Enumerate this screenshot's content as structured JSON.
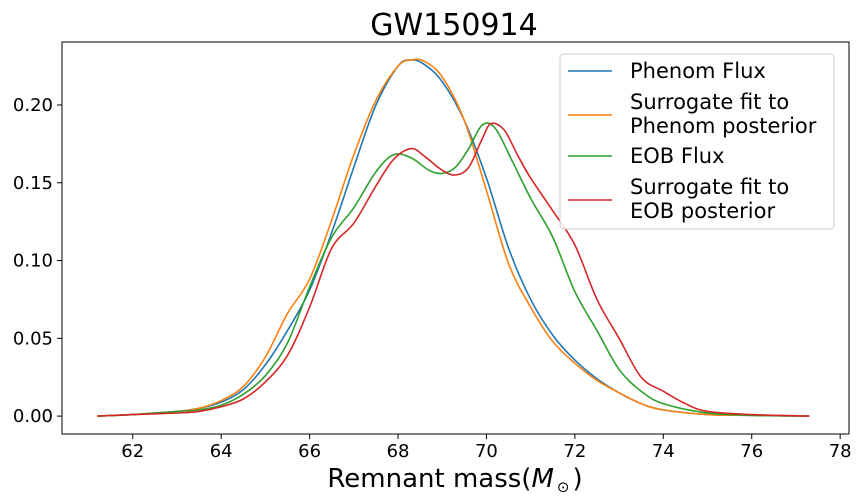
{
  "chart_data": {
    "type": "line",
    "title": "GW150914",
    "xlabel_main": "Remnant mass",
    "xlabel_paren_open": "(",
    "xlabel_M": "M",
    "xlabel_sub": "⊙",
    "xlabel_paren_close": ")",
    "ylabel": "",
    "xlim": [
      60.4,
      78.2
    ],
    "ylim": [
      -0.0115,
      0.2405
    ],
    "xticks": [
      62,
      64,
      66,
      68,
      70,
      72,
      74,
      76,
      78
    ],
    "xtick_labels": [
      "62",
      "64",
      "66",
      "68",
      "70",
      "72",
      "74",
      "76",
      "78"
    ],
    "yticks": [
      0.0,
      0.05,
      0.1,
      0.15,
      0.2
    ],
    "ytick_labels": [
      "0.00",
      "0.05",
      "0.10",
      "0.15",
      "0.20"
    ],
    "grid": false,
    "legend_position": "top-right",
    "legend": {
      "phenom_flux": "Phenom Flux",
      "surr_phenom_line1": "Surrogate fit to",
      "surr_phenom_line2": "Phenom posterior",
      "eob_flux": "EOB Flux",
      "surr_eob_line1": "Surrogate fit to",
      "surr_eob_line2": "EOB posterior"
    },
    "series": [
      {
        "name": "Phenom Flux",
        "color": "#1f77b4",
        "x": [
          61.2,
          62,
          63,
          63.5,
          64,
          64.5,
          65,
          65.5,
          66,
          66.5,
          67,
          67.5,
          68,
          68.3,
          68.6,
          69,
          69.5,
          70,
          70.5,
          71,
          71.5,
          72,
          72.5,
          73,
          73.5,
          74,
          75,
          76,
          77.3
        ],
        "y": [
          0.0,
          0.001,
          0.003,
          0.005,
          0.009,
          0.017,
          0.033,
          0.055,
          0.081,
          0.118,
          0.16,
          0.2,
          0.225,
          0.229,
          0.226,
          0.215,
          0.19,
          0.153,
          0.108,
          0.075,
          0.052,
          0.036,
          0.024,
          0.015,
          0.008,
          0.004,
          0.001,
          0.0005,
          0.0
        ]
      },
      {
        "name": "Surrogate fit to Phenom posterior",
        "color": "#ff7f0e",
        "x": [
          61.2,
          62,
          63,
          63.5,
          64,
          64.5,
          65,
          65.5,
          66,
          66.5,
          67,
          67.5,
          68,
          68.3,
          68.6,
          69,
          69.5,
          70,
          70.5,
          71,
          71.5,
          72,
          72.5,
          73,
          73.5,
          74,
          75,
          76,
          77.3
        ],
        "y": [
          0.0,
          0.001,
          0.003,
          0.005,
          0.01,
          0.019,
          0.038,
          0.066,
          0.088,
          0.126,
          0.168,
          0.203,
          0.225,
          0.229,
          0.228,
          0.218,
          0.19,
          0.145,
          0.098,
          0.07,
          0.048,
          0.034,
          0.023,
          0.015,
          0.008,
          0.004,
          0.001,
          0.0005,
          0.0
        ]
      },
      {
        "name": "EOB Flux",
        "color": "#2ca02c",
        "x": [
          61.2,
          62,
          63,
          63.5,
          64,
          64.5,
          65,
          65.5,
          66,
          66.5,
          67,
          67.5,
          67.9,
          68.3,
          68.7,
          69,
          69.3,
          69.6,
          69.9,
          70.2,
          70.6,
          71,
          71.5,
          72,
          72.5,
          73,
          73.5,
          74,
          75,
          76,
          77.3
        ],
        "y": [
          0.0,
          0.001,
          0.003,
          0.004,
          0.007,
          0.014,
          0.026,
          0.047,
          0.083,
          0.115,
          0.134,
          0.157,
          0.168,
          0.166,
          0.158,
          0.156,
          0.16,
          0.172,
          0.187,
          0.185,
          0.163,
          0.14,
          0.115,
          0.08,
          0.055,
          0.03,
          0.016,
          0.008,
          0.002,
          0.0005,
          0.0
        ]
      },
      {
        "name": "Surrogate fit to EOB posterior",
        "color": "#d62728",
        "x": [
          61.2,
          62,
          63,
          63.5,
          64,
          64.5,
          65,
          65.5,
          66,
          66.5,
          67,
          67.5,
          67.9,
          68.3,
          68.6,
          69,
          69.3,
          69.6,
          69.9,
          70.1,
          70.4,
          70.7,
          71,
          71.5,
          72,
          72.5,
          73,
          73.5,
          74,
          74.5,
          75,
          76,
          77.3
        ],
        "y": [
          0.0,
          0.001,
          0.002,
          0.003,
          0.006,
          0.011,
          0.022,
          0.039,
          0.07,
          0.108,
          0.124,
          0.148,
          0.165,
          0.172,
          0.167,
          0.158,
          0.155,
          0.16,
          0.178,
          0.188,
          0.184,
          0.168,
          0.153,
          0.132,
          0.11,
          0.075,
          0.05,
          0.025,
          0.016,
          0.008,
          0.003,
          0.001,
          0.0
        ]
      }
    ]
  }
}
